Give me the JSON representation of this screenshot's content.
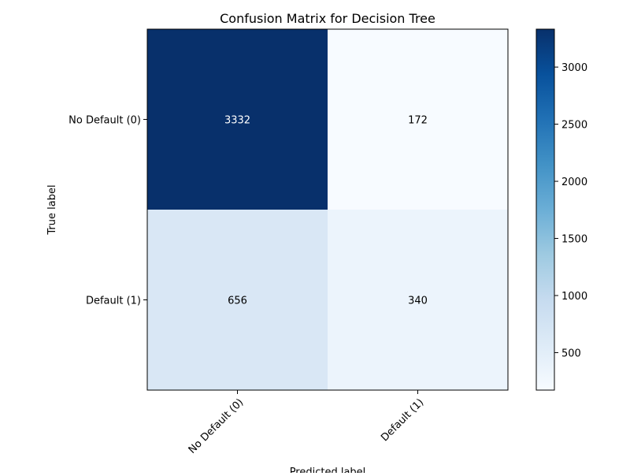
{
  "chart_data": {
    "type": "heatmap",
    "title": "Confusion Matrix for Decision Tree",
    "xlabel": "Predicted label",
    "ylabel": "True label",
    "x_categories": [
      "No Default (0)",
      "Default (1)"
    ],
    "y_categories": [
      "No Default (0)",
      "Default (1)"
    ],
    "values": [
      [
        3332,
        172
      ],
      [
        656,
        340
      ]
    ],
    "colormap": "Blues",
    "colorbar": {
      "range": [
        172,
        3332
      ],
      "ticks": [
        500,
        1000,
        1500,
        2000,
        2500,
        3000
      ]
    },
    "colors": {
      "min": "#f7fbff",
      "max": "#08306b"
    }
  }
}
